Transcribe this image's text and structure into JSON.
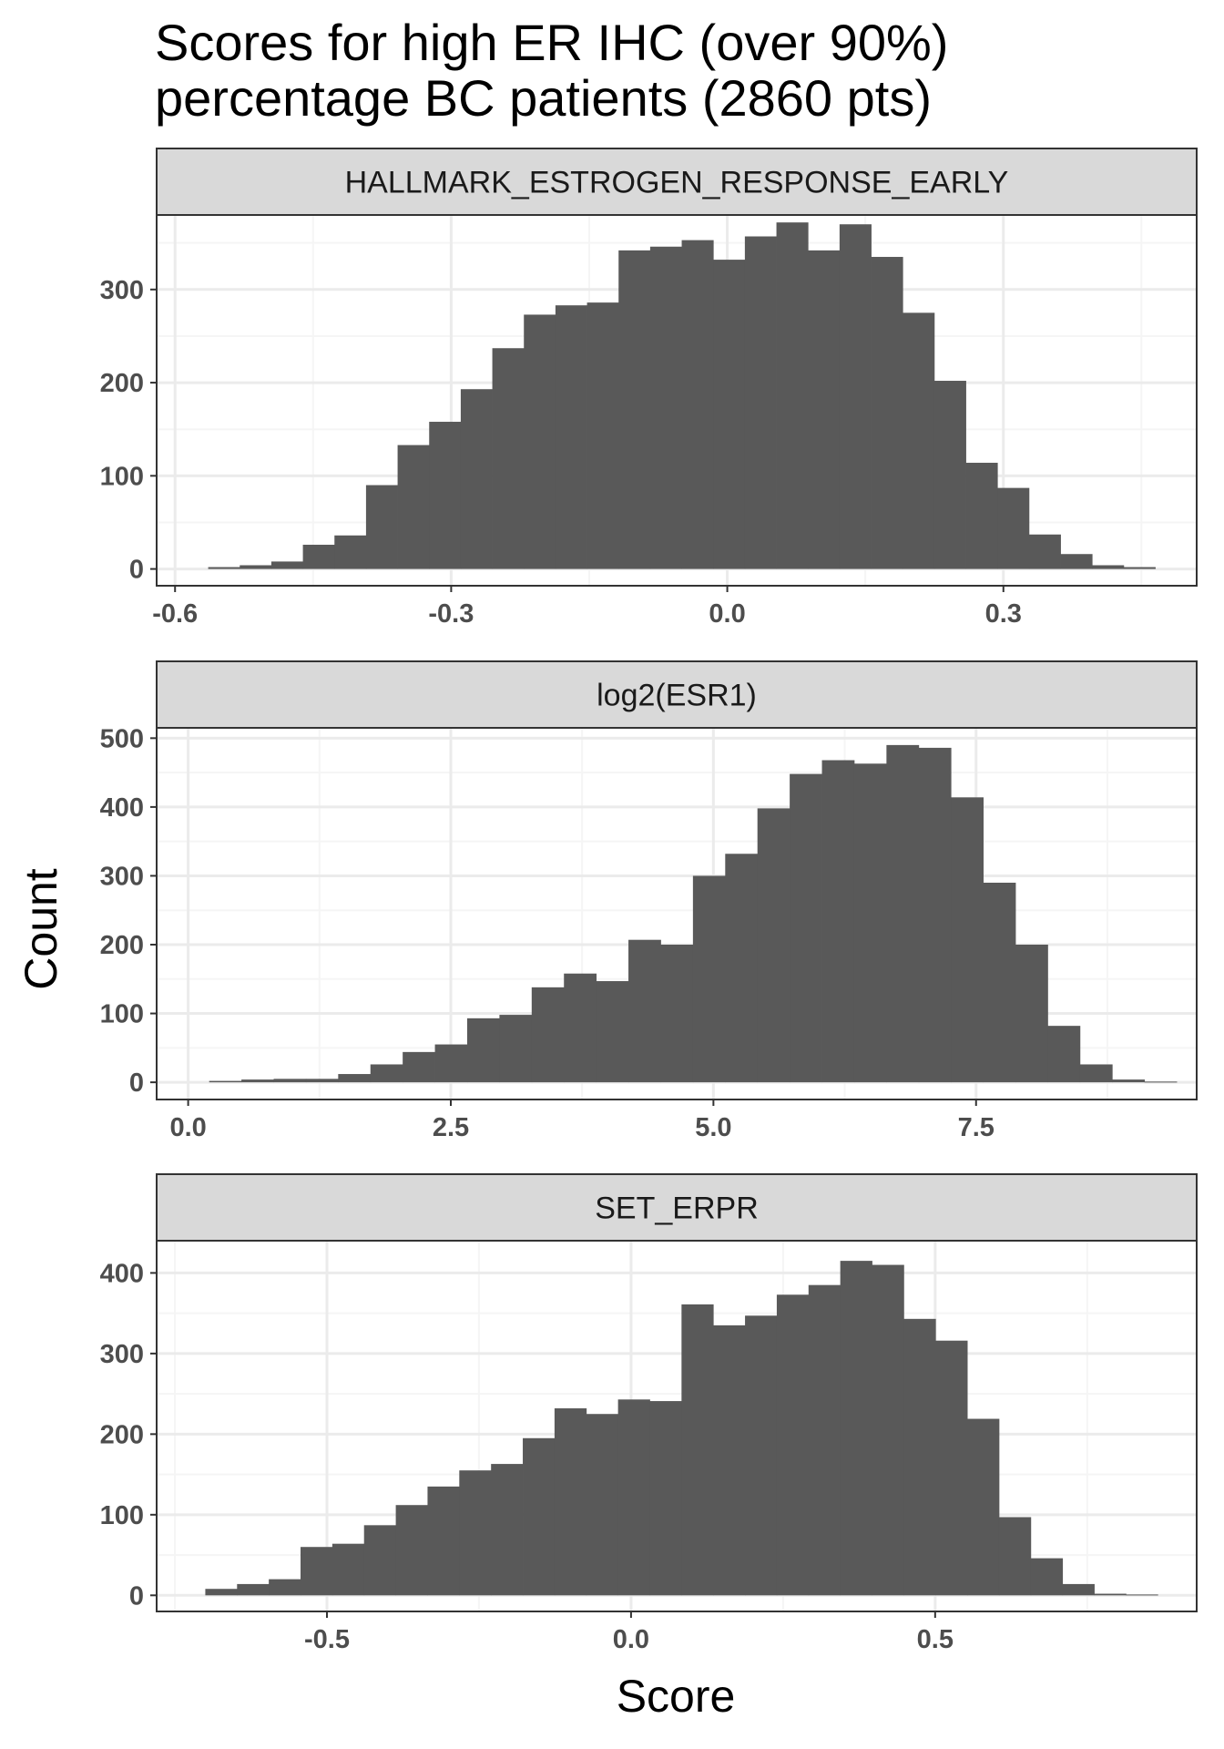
{
  "title": [
    "Scores for high ER IHC (over 90%)",
    "percentage BC patients (2860 pts)"
  ],
  "xlabel": "Score",
  "ylabel": "Count",
  "colors": {
    "bar": "#595959",
    "strip_fill": "#d9d9d9",
    "grid_major": "#ebebeb",
    "grid_minor": "#f5f5f5",
    "panel_border": "#333333"
  },
  "chart_data": [
    {
      "type": "bar",
      "title": "HALLMARK_ESTROGEN_RESPONSE_EARLY",
      "xlim": [
        -0.62,
        0.51
      ],
      "ylim": [
        -18,
        380
      ],
      "xticks": [
        -0.6,
        -0.3,
        0.0,
        0.3
      ],
      "xtick_labels": [
        "-0.6",
        "-0.3",
        "0.0",
        "0.3"
      ],
      "yticks": [
        0,
        100,
        200,
        300
      ],
      "grid": true,
      "bin_start": -0.564,
      "bin_width": 0.0343,
      "values": [
        2,
        4,
        8,
        26,
        36,
        90,
        133,
        158,
        193,
        237,
        273,
        283,
        286,
        342,
        346,
        353,
        332,
        357,
        372,
        342,
        370,
        335,
        275,
        202,
        114,
        87,
        37,
        16,
        4,
        2
      ]
    },
    {
      "type": "bar",
      "title": "log2(ESR1)",
      "xlim": [
        -0.3,
        9.6
      ],
      "ylim": [
        -25,
        515
      ],
      "xticks": [
        0.0,
        2.5,
        5.0,
        7.5
      ],
      "xtick_labels": [
        "0.0",
        "2.5",
        "5.0",
        "7.5"
      ],
      "yticks": [
        0,
        100,
        200,
        300,
        400,
        500
      ],
      "grid": true,
      "bin_start": 0.2,
      "bin_width": 0.307,
      "values": [
        2,
        4,
        5,
        5,
        12,
        26,
        44,
        55,
        93,
        98,
        138,
        158,
        147,
        207,
        200,
        300,
        332,
        398,
        448,
        468,
        463,
        490,
        486,
        414,
        290,
        200,
        82,
        26,
        4,
        1
      ]
    },
    {
      "type": "bar",
      "title": "SET_ERPR",
      "xlim": [
        -0.78,
        0.93
      ],
      "ylim": [
        -20,
        440
      ],
      "xticks": [
        -0.5,
        0.0,
        0.5
      ],
      "xtick_labels": [
        "-0.5",
        "0.0",
        "0.5"
      ],
      "yticks": [
        0,
        100,
        200,
        300,
        400
      ],
      "grid": true,
      "bin_start": -0.7,
      "bin_width": 0.0522,
      "values": [
        8,
        14,
        20,
        60,
        64,
        87,
        112,
        135,
        155,
        163,
        195,
        232,
        225,
        243,
        241,
        361,
        335,
        347,
        373,
        385,
        415,
        410,
        343,
        316,
        219,
        97,
        46,
        14,
        2,
        1
      ]
    }
  ]
}
